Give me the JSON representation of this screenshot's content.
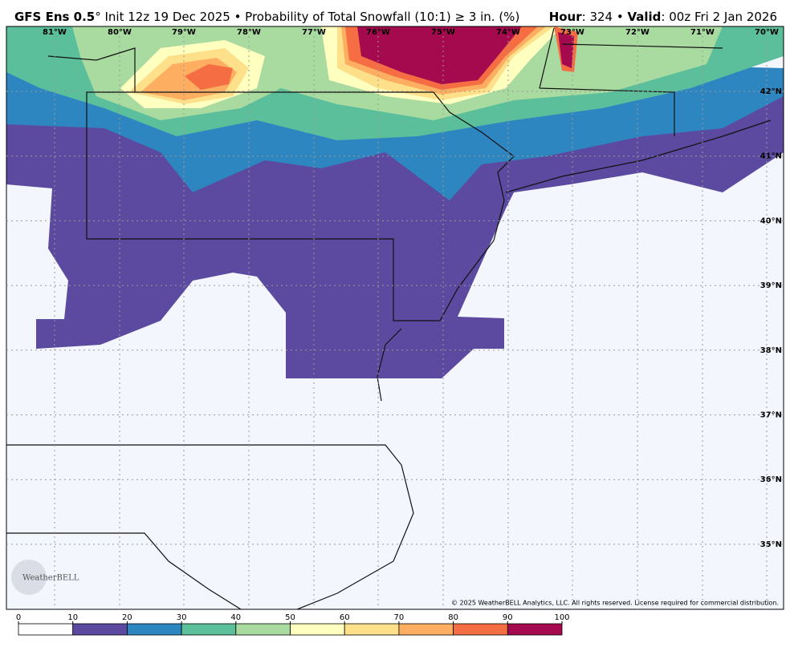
{
  "header": {
    "model": "GFS Ens 0.5",
    "init": "° Init 12z 19 Dec 2025 • Probability of Total Snowfall (10:1) ≥ 3 in. (%)",
    "hour_label": "Hour",
    "hour": ": 324 • ",
    "valid_label": "Valid",
    "valid": ": 00z Fri 2 Jan 2026"
  },
  "map": {
    "lon_labels": [
      "81°W",
      "80°W",
      "79°W",
      "78°W",
      "77°W",
      "76°W",
      "75°W",
      "74°W",
      "73°W",
      "72°W",
      "71°W",
      "70°W"
    ],
    "lat_labels": [
      "42°N",
      "41°N",
      "40°N",
      "39°N",
      "38°N",
      "37°N",
      "36°N",
      "35°N"
    ],
    "copyright": "© 2025 WeatherBELL Analytics, LLC. All rights reserved. License required for commercial distribution.",
    "logo": "WeatherBELL"
  },
  "colorbar": {
    "ticks": [
      0,
      10,
      20,
      30,
      40,
      50,
      60,
      70,
      80,
      90,
      100
    ],
    "colors": [
      "#ffffff",
      "#5b4a9f",
      "#2e86c1",
      "#5cbf9b",
      "#a9dba0",
      "#ffffbf",
      "#fee08b",
      "#fdae61",
      "#f46d43",
      "#a50a4e"
    ]
  }
}
